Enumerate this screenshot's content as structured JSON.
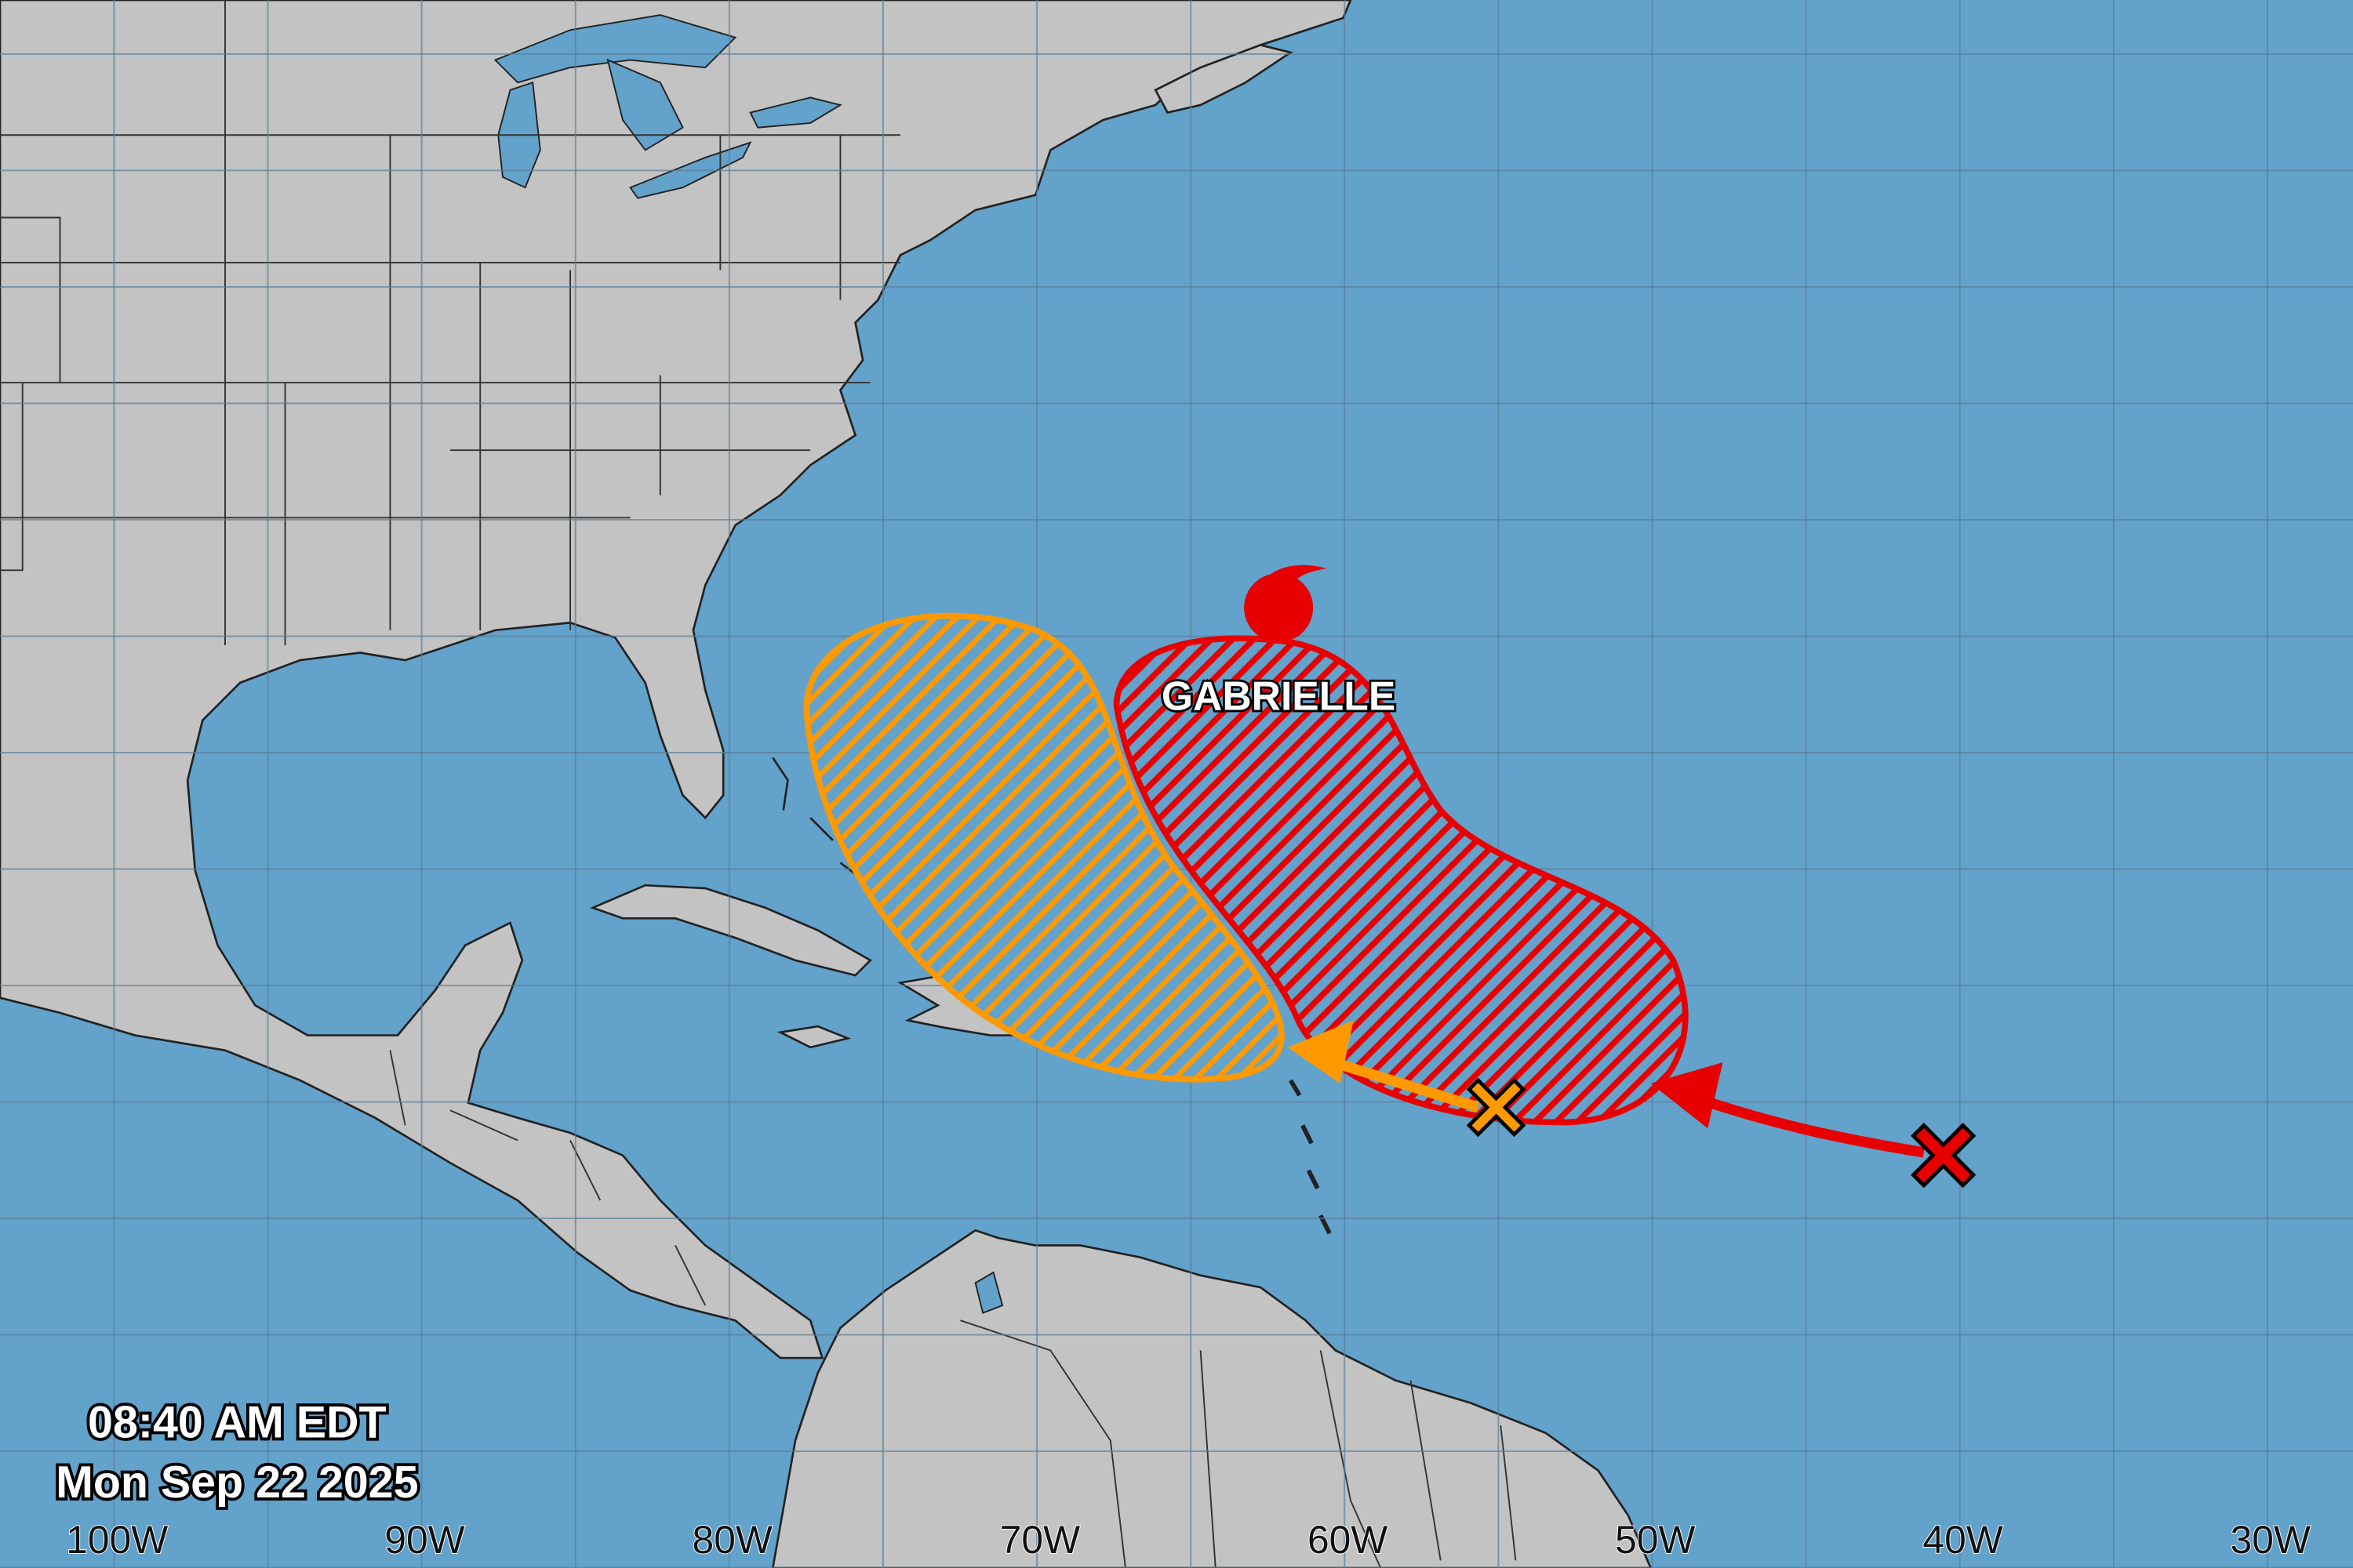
{
  "timestamp": {
    "time": "08:40 AM EDT",
    "date": "Mon Sep 22 2025"
  },
  "storm": {
    "name": "GABRIELLE",
    "icon": "hurricane-icon",
    "color": "#e60000"
  },
  "longitude_labels": [
    "100W",
    "90W",
    "80W",
    "70W",
    "60W",
    "50W",
    "40W",
    "30W"
  ],
  "colors": {
    "ocean": "#63a2cb",
    "land": "#c3c3c3",
    "area_high": "#e60000",
    "area_medium": "#ff9900"
  },
  "outlook_areas": [
    {
      "color_name": "red",
      "marker": "x-marker"
    },
    {
      "color_name": "orange",
      "marker": "x-marker"
    }
  ]
}
